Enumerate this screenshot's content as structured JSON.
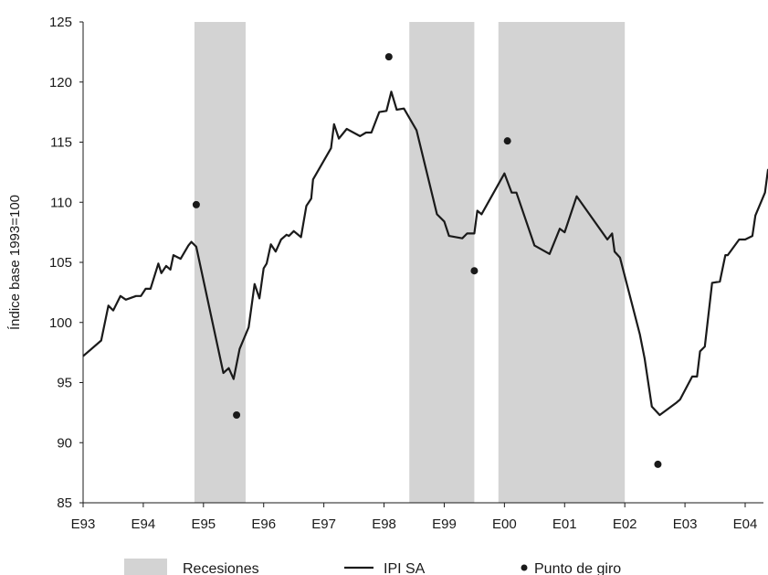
{
  "chart_data": {
    "type": "line",
    "ylabel": "Índice base 1993=100",
    "ylim": [
      85,
      125
    ],
    "y_ticks": [
      "85",
      "90",
      "95",
      "100",
      "105",
      "110",
      "115",
      "120",
      "125"
    ],
    "x_ticks": [
      {
        "label": "E93",
        "x": 1993.0
      },
      {
        "label": "E94",
        "x": 1994.0
      },
      {
        "label": "E95",
        "x": 1995.0
      },
      {
        "label": "E96",
        "x": 1996.0
      },
      {
        "label": "E97",
        "x": 1997.0
      },
      {
        "label": "E98",
        "x": 1998.0
      },
      {
        "label": "E99",
        "x": 1999.0
      },
      {
        "label": "E00",
        "x": 2000.0
      },
      {
        "label": "E01",
        "x": 2001.0
      },
      {
        "label": "E02",
        "x": 2002.0
      },
      {
        "label": "E03",
        "x": 2003.0
      },
      {
        "label": "E04",
        "x": 2004.0
      }
    ],
    "xlim": [
      1993.0,
      2004.45
    ],
    "grid": false,
    "legend_position": "bottom",
    "recessions": [
      {
        "start": 1994.85,
        "end": 1995.7
      },
      {
        "start": 1998.42,
        "end": 1999.5
      },
      {
        "start": 1999.9,
        "end": 2002.0
      }
    ],
    "series": [
      {
        "name": "IPI SA",
        "color": "#1a1a1a",
        "points": [
          [
            1993.0,
            97.2
          ],
          [
            1993.3,
            98.5
          ],
          [
            1993.42,
            101.4
          ],
          [
            1993.5,
            101.0
          ],
          [
            1993.62,
            102.2
          ],
          [
            1993.71,
            101.9
          ],
          [
            1993.88,
            102.2
          ],
          [
            1993.96,
            102.2
          ],
          [
            1994.04,
            102.8
          ],
          [
            1994.12,
            102.8
          ],
          [
            1994.25,
            104.9
          ],
          [
            1994.3,
            104.1
          ],
          [
            1994.38,
            104.7
          ],
          [
            1994.45,
            104.4
          ],
          [
            1994.5,
            105.6
          ],
          [
            1994.62,
            105.3
          ],
          [
            1994.75,
            106.4
          ],
          [
            1994.8,
            106.7
          ],
          [
            1994.88,
            106.3
          ],
          [
            1995.33,
            95.8
          ],
          [
            1995.42,
            96.2
          ],
          [
            1995.5,
            95.3
          ],
          [
            1995.6,
            97.8
          ],
          [
            1995.75,
            99.6
          ],
          [
            1995.85,
            103.2
          ],
          [
            1995.93,
            102.0
          ],
          [
            1996.0,
            104.5
          ],
          [
            1996.05,
            104.9
          ],
          [
            1996.12,
            106.5
          ],
          [
            1996.2,
            105.9
          ],
          [
            1996.29,
            106.9
          ],
          [
            1996.38,
            107.3
          ],
          [
            1996.42,
            107.2
          ],
          [
            1996.5,
            107.6
          ],
          [
            1996.62,
            107.1
          ],
          [
            1996.71,
            109.7
          ],
          [
            1996.79,
            110.3
          ],
          [
            1996.82,
            111.9
          ],
          [
            1997.12,
            114.5
          ],
          [
            1997.17,
            116.5
          ],
          [
            1997.25,
            115.3
          ],
          [
            1997.38,
            116.1
          ],
          [
            1997.6,
            115.5
          ],
          [
            1997.7,
            115.8
          ],
          [
            1997.79,
            115.8
          ],
          [
            1997.92,
            117.5
          ],
          [
            1998.04,
            117.6
          ],
          [
            1998.12,
            119.2
          ],
          [
            1998.21,
            117.7
          ],
          [
            1998.33,
            117.8
          ],
          [
            1998.54,
            116.0
          ],
          [
            1998.88,
            109.0
          ],
          [
            1999.0,
            108.4
          ],
          [
            1999.08,
            107.2
          ],
          [
            1999.3,
            107.0
          ],
          [
            1999.38,
            107.4
          ],
          [
            1999.5,
            107.4
          ],
          [
            1999.55,
            109.3
          ],
          [
            1999.62,
            109.0
          ],
          [
            2000.0,
            112.4
          ],
          [
            2000.12,
            110.8
          ],
          [
            2000.2,
            110.8
          ],
          [
            2000.5,
            106.4
          ],
          [
            2000.75,
            105.7
          ],
          [
            2000.92,
            107.8
          ],
          [
            2001.0,
            107.5
          ],
          [
            2001.2,
            110.5
          ],
          [
            2001.71,
            106.9
          ],
          [
            2001.79,
            107.4
          ],
          [
            2001.83,
            105.9
          ],
          [
            2001.92,
            105.4
          ],
          [
            2002.25,
            99.0
          ],
          [
            2002.33,
            97.0
          ],
          [
            2002.45,
            93.0
          ],
          [
            2002.58,
            92.3
          ],
          [
            2002.85,
            93.3
          ],
          [
            2002.92,
            93.6
          ],
          [
            2003.12,
            95.5
          ],
          [
            2003.2,
            95.5
          ],
          [
            2003.25,
            97.6
          ],
          [
            2003.33,
            98.0
          ],
          [
            2003.45,
            103.3
          ],
          [
            2003.58,
            103.4
          ],
          [
            2003.67,
            105.6
          ],
          [
            2003.71,
            105.6
          ],
          [
            2003.9,
            106.9
          ],
          [
            2004.0,
            106.9
          ],
          [
            2004.12,
            107.2
          ],
          [
            2004.17,
            108.9
          ],
          [
            2004.33,
            110.8
          ],
          [
            2004.38,
            112.7
          ],
          [
            2004.46,
            112.4
          ],
          [
            2004.5,
            115.3
          ],
          [
            2004.62,
            113.1
          ],
          [
            2004.68,
            112.9
          ],
          [
            2004.75,
            114.8
          ]
        ]
      },
      {
        "name": "Punto de giro",
        "color": "#1a1a1a",
        "points": [
          [
            1994.88,
            109.8
          ],
          [
            1995.55,
            92.3
          ],
          [
            1998.08,
            122.1
          ],
          [
            1999.5,
            104.3
          ],
          [
            2000.05,
            115.1
          ],
          [
            2002.55,
            88.2
          ]
        ]
      }
    ],
    "legend": [
      {
        "label": "Recesiones",
        "kind": "patch",
        "color": "#d3d3d3"
      },
      {
        "label": "IPI SA",
        "kind": "line",
        "color": "#1a1a1a"
      },
      {
        "label": "Punto de giro",
        "kind": "dot",
        "color": "#1a1a1a"
      }
    ]
  }
}
